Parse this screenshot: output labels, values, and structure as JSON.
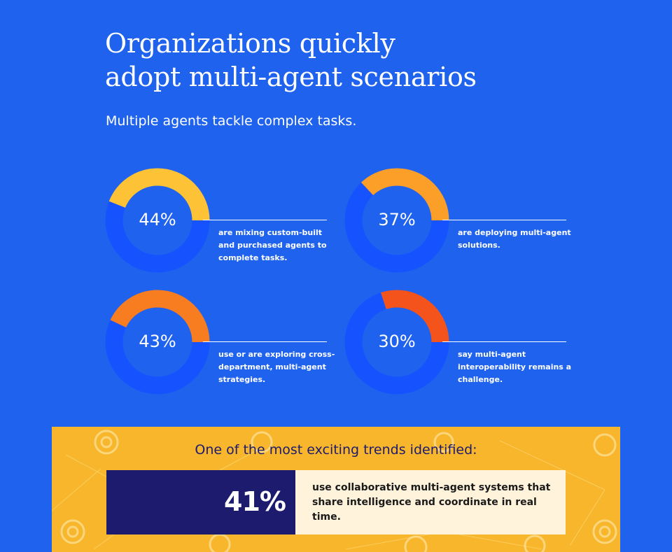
{
  "header": {
    "title_line1": "Organizations quickly",
    "title_line2": "adopt multi-agent scenarios",
    "subtitle": "Multiple agents tackle complex tasks."
  },
  "chart_data": {
    "type": "pie",
    "unit": "%",
    "items": [
      {
        "value": 44,
        "label": "44%",
        "description": "are mixing custom-built and purchased agents to complete tasks.",
        "color": "#fdc236"
      },
      {
        "value": 37,
        "label": "37%",
        "description": "are deploying multi-agent solutions.",
        "color": "#fb9f28"
      },
      {
        "value": 43,
        "label": "43%",
        "description": "use or are exploring cross-department, multi-agent strategies.",
        "color": "#f87d21"
      },
      {
        "value": 30,
        "label": "30%",
        "description": "say multi-agent interoperability remains a challenge.",
        "color": "#f4541c"
      }
    ],
    "track_color": "#1752ff"
  },
  "highlight": {
    "heading": "One of the most exciting trends identified:",
    "value": 41,
    "value_label": "41%",
    "description": "use collaborative multi-agent systems that share intelligence and coordinate in real time."
  },
  "colors": {
    "background": "#1f62ee",
    "trend_background": "#f7b62b",
    "navy": "#1c1b6e",
    "cream": "#fff3dc"
  }
}
